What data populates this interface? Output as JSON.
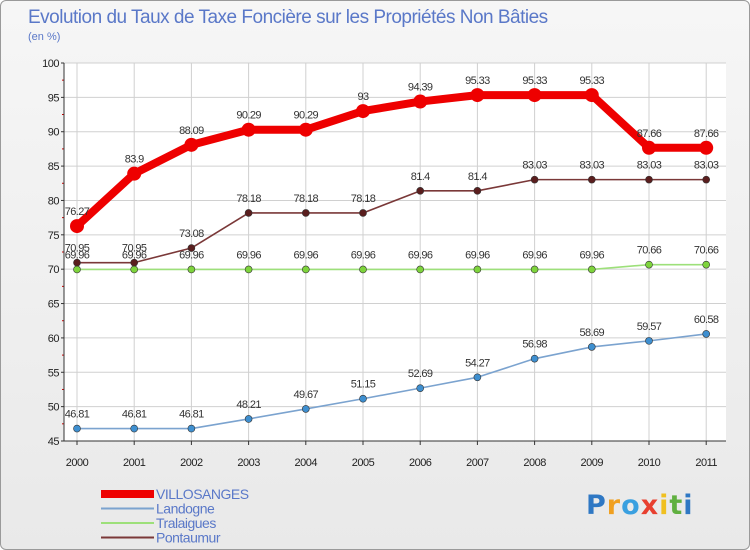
{
  "chart_data": {
    "type": "line",
    "title": "Evolution du Taux de Taxe Foncière sur les Propriétés Non Bâties",
    "ylabel": "(en %)",
    "xlabel": "",
    "x": [
      "2000",
      "2001",
      "2002",
      "2003",
      "2004",
      "2005",
      "2006",
      "2007",
      "2008",
      "2009",
      "2010",
      "2011"
    ],
    "ylim": [
      45,
      100
    ],
    "yticks": [
      "45",
      "50",
      "55",
      "60",
      "65",
      "70",
      "75",
      "80",
      "85",
      "90",
      "95",
      "100"
    ],
    "series": [
      {
        "name": "VILLOSANGES",
        "color": "#ee0000",
        "marker": "#ee0000",
        "values": [
          76.27,
          83.9,
          88.09,
          90.29,
          90.29,
          93,
          94.39,
          95.33,
          95.33,
          95.33,
          87.66,
          87.66
        ],
        "labels": [
          "76.27",
          "83.9",
          "88.09",
          "90.29",
          "90.29",
          "93",
          "94.39",
          "95.33",
          "95.33",
          "95.33",
          "87.66",
          "87.66"
        ]
      },
      {
        "name": "Landogne",
        "color": "#7ba3cf",
        "marker": "#3e8fd0",
        "values": [
          46.81,
          46.81,
          46.81,
          48.21,
          49.67,
          51.15,
          52.69,
          54.27,
          56.98,
          58.69,
          59.57,
          60.58
        ],
        "labels": [
          "46.81",
          "46.81",
          "46.81",
          "48.21",
          "49.67",
          "51.15",
          "52.69",
          "54.27",
          "56.98",
          "58.69",
          "59.57",
          "60.58"
        ]
      },
      {
        "name": "Tralaigues",
        "color": "#9de07a",
        "marker": "#7ed43c",
        "values": [
          69.96,
          69.96,
          69.96,
          69.96,
          69.96,
          69.96,
          69.96,
          69.96,
          69.96,
          69.96,
          70.66,
          70.66
        ],
        "labels": [
          "69.96",
          "69.96",
          "69.96",
          "69.96",
          "69.96",
          "69.96",
          "69.96",
          "69.96",
          "69.96",
          "69.96",
          "70.66",
          "70.66"
        ]
      },
      {
        "name": "Pontaumur",
        "color": "#7a3838",
        "marker": "#5a1e1e",
        "values": [
          70.95,
          70.95,
          73.08,
          78.18,
          78.18,
          78.18,
          81.4,
          81.4,
          83.03,
          83.03,
          83.03,
          83.03
        ],
        "labels": [
          "70.95",
          "70.95",
          "73.08",
          "78.18",
          "78.18",
          "78.18",
          "81.4",
          "81.4",
          "83.03",
          "83.03",
          "83.03",
          "83.03"
        ]
      }
    ]
  },
  "legend": [
    {
      "label": "VILLOSANGES",
      "color": "#ee0000",
      "text_color": "#5a78c8"
    },
    {
      "label": "Landogne",
      "color": "#7ba3cf",
      "text_color": "#5a78c8"
    },
    {
      "label": "Tralaigues",
      "color": "#9de07a",
      "text_color": "#5a78c8"
    },
    {
      "label": "Pontaumur",
      "color": "#7a3838",
      "text_color": "#5a78c8"
    }
  ],
  "logo": {
    "letters": [
      "P",
      "r",
      "o",
      "x",
      "i",
      "t",
      "i"
    ],
    "colors": [
      "#2f78c4",
      "#f0a020",
      "#3aa0e0",
      "#e84030",
      "#f0c020",
      "#60b040",
      "#2f78c4"
    ]
  }
}
